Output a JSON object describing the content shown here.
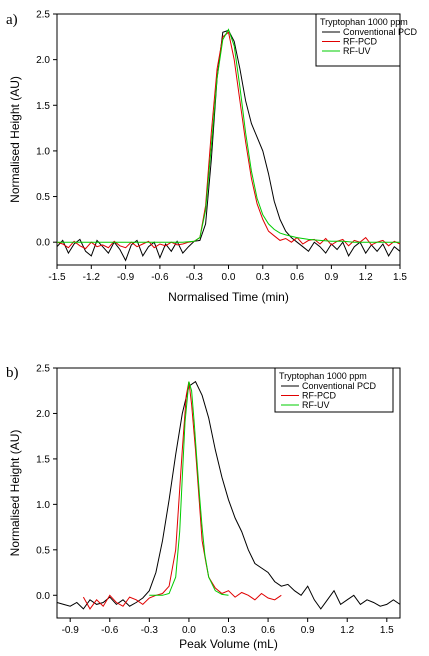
{
  "chart_data": [
    {
      "type": "line",
      "panel_label": "a)",
      "xlabel": "Normalised Time (min)",
      "ylabel": "Normalised Height (AU)",
      "xlim": [
        -1.5,
        1.5
      ],
      "ylim": [
        -0.25,
        2.5
      ],
      "xticks": [
        "-1.5",
        "-1.2",
        "-0.9",
        "-0.6",
        "-0.3",
        "0.0",
        "0.3",
        "0.6",
        "0.9",
        "1.2",
        "1.5"
      ],
      "yticks": [
        "0.0",
        "0.5",
        "1.0",
        "1.5",
        "2.0",
        "2.5"
      ],
      "legend": {
        "title": "Tryptophan 1000 ppm",
        "placement": "top-right"
      },
      "series": [
        {
          "name": "Conventional PCD",
          "color": "#000000",
          "x": [
            -1.5,
            -1.45,
            -1.4,
            -1.35,
            -1.3,
            -1.25,
            -1.2,
            -1.15,
            -1.1,
            -1.05,
            -1.0,
            -0.95,
            -0.9,
            -0.85,
            -0.8,
            -0.75,
            -0.7,
            -0.65,
            -0.6,
            -0.55,
            -0.5,
            -0.45,
            -0.4,
            -0.35,
            -0.3,
            -0.25,
            -0.2,
            -0.15,
            -0.1,
            -0.05,
            0.0,
            0.05,
            0.1,
            0.15,
            0.2,
            0.25,
            0.3,
            0.35,
            0.4,
            0.45,
            0.5,
            0.55,
            0.6,
            0.65,
            0.7,
            0.75,
            0.8,
            0.85,
            0.9,
            0.95,
            1.0,
            1.05,
            1.1,
            1.15,
            1.2,
            1.25,
            1.3,
            1.35,
            1.4,
            1.45,
            1.5
          ],
          "y": [
            -0.05,
            0.02,
            -0.12,
            -0.02,
            0.03,
            -0.1,
            -0.15,
            0.02,
            -0.05,
            -0.12,
            0.0,
            -0.08,
            -0.2,
            -0.03,
            0.02,
            -0.15,
            -0.05,
            0.0,
            -0.17,
            -0.02,
            -0.1,
            0.01,
            -0.12,
            -0.05,
            0.01,
            0.02,
            0.2,
            0.9,
            1.8,
            2.3,
            2.32,
            2.2,
            1.9,
            1.55,
            1.3,
            1.15,
            1.0,
            0.75,
            0.45,
            0.25,
            0.12,
            0.05,
            0.0,
            -0.05,
            -0.1,
            0.0,
            -0.05,
            -0.12,
            -0.02,
            -0.08,
            0.0,
            -0.15,
            -0.05,
            0.0,
            -0.12,
            -0.03,
            -0.1,
            -0.02,
            -0.15,
            -0.05,
            -0.1
          ]
        },
        {
          "name": "RF-PCD",
          "color": "#e00000",
          "x": [
            -1.5,
            -1.45,
            -1.4,
            -1.35,
            -1.3,
            -1.25,
            -1.2,
            -1.15,
            -1.1,
            -1.05,
            -1.0,
            -0.95,
            -0.9,
            -0.85,
            -0.8,
            -0.75,
            -0.7,
            -0.65,
            -0.6,
            -0.55,
            -0.5,
            -0.45,
            -0.4,
            -0.35,
            -0.3,
            -0.25,
            -0.2,
            -0.15,
            -0.1,
            -0.05,
            0.0,
            0.05,
            0.1,
            0.15,
            0.2,
            0.25,
            0.3,
            0.35,
            0.4,
            0.45,
            0.5,
            0.55,
            0.6,
            0.65,
            0.7,
            0.75,
            0.8,
            0.85,
            0.9,
            0.95,
            1.0,
            1.05,
            1.1,
            1.15,
            1.2,
            1.25,
            1.3,
            1.35,
            1.4,
            1.45,
            1.5
          ],
          "y": [
            0.0,
            -0.02,
            -0.06,
            0.01,
            -0.04,
            -0.07,
            0.0,
            -0.05,
            -0.03,
            -0.06,
            0.01,
            -0.04,
            -0.06,
            0.0,
            -0.05,
            -0.02,
            0.01,
            -0.06,
            -0.02,
            -0.04,
            0.0,
            -0.03,
            -0.02,
            0.0,
            0.01,
            0.05,
            0.4,
            1.2,
            1.9,
            2.25,
            2.3,
            2.0,
            1.55,
            1.1,
            0.7,
            0.42,
            0.25,
            0.12,
            0.07,
            0.02,
            0.04,
            0.0,
            0.05,
            -0.02,
            0.02,
            0.03,
            -0.02,
            0.04,
            -0.03,
            0.01,
            0.03,
            -0.04,
            0.02,
            0.0,
            0.05,
            -0.03,
            0.0,
            0.02,
            -0.04,
            0.01,
            -0.02
          ]
        },
        {
          "name": "RF-UV",
          "color": "#00cc00",
          "x": [
            -1.5,
            -1.3,
            -1.1,
            -0.9,
            -0.7,
            -0.5,
            -0.4,
            -0.3,
            -0.25,
            -0.2,
            -0.15,
            -0.1,
            -0.05,
            0.0,
            0.05,
            0.1,
            0.15,
            0.2,
            0.25,
            0.3,
            0.35,
            0.4,
            0.45,
            0.5,
            0.6,
            0.7,
            0.8,
            0.9,
            1.0,
            1.1,
            1.2,
            1.3,
            1.4,
            1.5
          ],
          "y": [
            0.0,
            0.0,
            0.0,
            0.0,
            0.0,
            0.0,
            0.0,
            0.01,
            0.05,
            0.35,
            1.05,
            1.8,
            2.22,
            2.33,
            2.15,
            1.7,
            1.2,
            0.78,
            0.48,
            0.3,
            0.2,
            0.14,
            0.1,
            0.08,
            0.05,
            0.03,
            0.02,
            0.01,
            0.01,
            0.0,
            0.0,
            0.0,
            0.0,
            0.0
          ]
        }
      ]
    },
    {
      "type": "line",
      "panel_label": "b)",
      "xlabel": "Peak Volume (mL)",
      "ylabel": "Normalised Height (AU)",
      "xlim": [
        -1.0,
        1.6
      ],
      "ylim": [
        -0.25,
        2.5
      ],
      "xticks": [
        "-0.9",
        "-0.6",
        "-0.3",
        "0.0",
        "0.3",
        "0.6",
        "0.9",
        "1.2",
        "1.5"
      ],
      "yticks": [
        "0.0",
        "0.5",
        "1.0",
        "1.5",
        "2.0",
        "2.5"
      ],
      "legend": {
        "title": "Tryptophan 1000 ppm",
        "placement": "top-right"
      },
      "series": [
        {
          "name": "Conventional PCD",
          "color": "#000000",
          "x": [
            -1.0,
            -0.95,
            -0.9,
            -0.85,
            -0.8,
            -0.75,
            -0.7,
            -0.65,
            -0.6,
            -0.55,
            -0.5,
            -0.45,
            -0.4,
            -0.35,
            -0.3,
            -0.25,
            -0.2,
            -0.15,
            -0.1,
            -0.05,
            0.0,
            0.05,
            0.1,
            0.15,
            0.2,
            0.25,
            0.3,
            0.35,
            0.4,
            0.45,
            0.5,
            0.55,
            0.6,
            0.65,
            0.7,
            0.75,
            0.8,
            0.85,
            0.9,
            0.95,
            1.0,
            1.05,
            1.1,
            1.15,
            1.2,
            1.25,
            1.3,
            1.35,
            1.4,
            1.45,
            1.5,
            1.55,
            1.6
          ],
          "y": [
            -0.08,
            -0.1,
            -0.12,
            -0.08,
            -0.15,
            -0.05,
            -0.1,
            -0.08,
            -0.02,
            -0.1,
            -0.05,
            -0.12,
            -0.08,
            -0.03,
            0.05,
            0.25,
            0.6,
            1.05,
            1.55,
            2.0,
            2.3,
            2.35,
            2.2,
            1.95,
            1.6,
            1.3,
            1.05,
            0.85,
            0.7,
            0.5,
            0.35,
            0.3,
            0.25,
            0.15,
            0.1,
            0.12,
            0.05,
            0.0,
            0.1,
            -0.05,
            -0.15,
            -0.05,
            0.05,
            -0.1,
            -0.05,
            0.0,
            -0.1,
            -0.05,
            -0.08,
            -0.12,
            -0.1,
            -0.05,
            -0.1
          ]
        },
        {
          "name": "RF-PCD",
          "color": "#e00000",
          "x": [
            -0.8,
            -0.75,
            -0.7,
            -0.65,
            -0.6,
            -0.55,
            -0.5,
            -0.45,
            -0.4,
            -0.35,
            -0.3,
            -0.25,
            -0.2,
            -0.15,
            -0.1,
            -0.05,
            -0.02,
            0.0,
            0.02,
            0.05,
            0.08,
            0.1,
            0.13,
            0.15,
            0.2,
            0.25,
            0.3,
            0.35,
            0.4,
            0.45,
            0.5,
            0.55,
            0.6,
            0.65,
            0.7
          ],
          "y": [
            -0.02,
            -0.15,
            -0.05,
            -0.12,
            0.0,
            -0.08,
            -0.12,
            -0.02,
            -0.05,
            -0.1,
            -0.03,
            0.0,
            0.02,
            0.1,
            0.5,
            1.6,
            2.2,
            2.35,
            2.1,
            1.6,
            1.0,
            0.6,
            0.35,
            0.2,
            0.08,
            0.02,
            0.05,
            -0.02,
            0.03,
            0.0,
            -0.05,
            0.02,
            -0.03,
            -0.05,
            0.0
          ]
        },
        {
          "name": "RF-UV",
          "color": "#00cc00",
          "x": [
            -0.3,
            -0.2,
            -0.15,
            -0.1,
            -0.07,
            -0.05,
            -0.03,
            0.0,
            0.02,
            0.04,
            0.06,
            0.08,
            0.1,
            0.12,
            0.15,
            0.2,
            0.25,
            0.3
          ],
          "y": [
            0.0,
            0.0,
            0.02,
            0.2,
            0.7,
            1.3,
            1.9,
            2.35,
            2.25,
            1.9,
            1.5,
            1.1,
            0.75,
            0.45,
            0.2,
            0.05,
            0.01,
            0.0
          ]
        }
      ]
    }
  ]
}
